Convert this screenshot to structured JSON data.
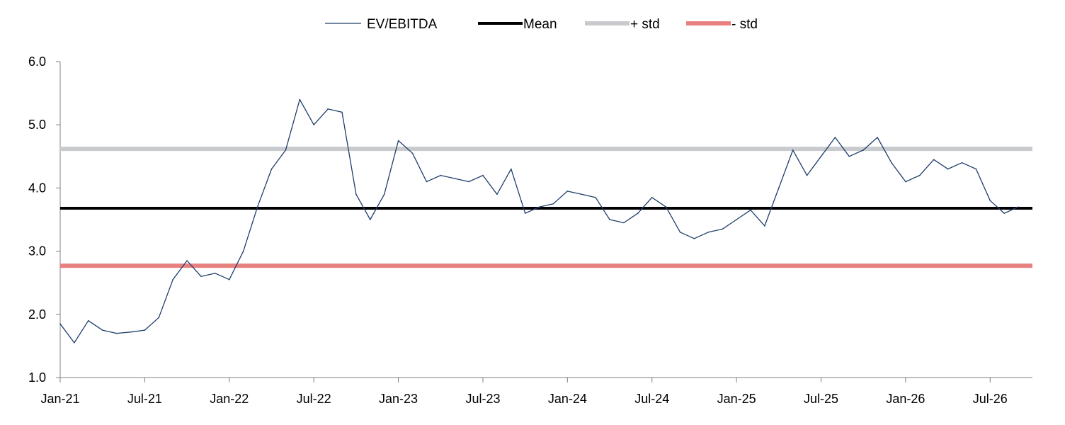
{
  "chart_data": {
    "type": "line",
    "title": "",
    "xlabel": "",
    "ylabel": "",
    "xlim": [
      "2021-01",
      "2026-10"
    ],
    "ylim": [
      1.0,
      6.0
    ],
    "x_ticks": [
      "Jan-21",
      "Jul-21",
      "Jan-22",
      "Jul-22",
      "Jan-23",
      "Jul-23",
      "Jan-24",
      "Jul-24",
      "Jan-25",
      "Jul-25",
      "Jan-26",
      "Jul-26"
    ],
    "y_ticks": [
      "1.0",
      "2.0",
      "3.0",
      "4.0",
      "5.0",
      "6.0"
    ],
    "grid": false,
    "legend_position": "top-center",
    "legend": [
      "EV/EBITDA",
      "Mean",
      "+ std",
      "- std"
    ],
    "colors": {
      "ev_ebitda": "#1f3d6b",
      "mean": "#000000",
      "plus_std": "#c8cace",
      "minus_std": "#e88080"
    },
    "series": [
      {
        "name": "EV/EBITDA",
        "x": [
          "2021-01",
          "2021-02",
          "2021-03",
          "2021-04",
          "2021-05",
          "2021-06",
          "2021-07",
          "2021-08",
          "2021-09",
          "2021-10",
          "2021-11",
          "2021-12",
          "2022-01",
          "2022-02",
          "2022-03",
          "2022-04",
          "2022-05",
          "2022-06",
          "2022-07",
          "2022-08",
          "2022-09",
          "2022-10",
          "2022-11",
          "2022-12",
          "2023-01",
          "2023-02",
          "2023-03",
          "2023-04",
          "2023-05",
          "2023-06",
          "2023-07",
          "2023-08",
          "2023-09",
          "2023-10",
          "2023-11",
          "2023-12",
          "2024-01",
          "2024-02",
          "2024-03",
          "2024-04",
          "2024-05",
          "2024-06",
          "2024-07",
          "2024-08",
          "2024-09",
          "2024-10",
          "2024-11",
          "2024-12",
          "2025-01",
          "2025-02",
          "2025-03",
          "2025-04",
          "2025-05",
          "2025-06",
          "2025-07",
          "2025-08",
          "2025-09",
          "2025-10",
          "2025-11",
          "2025-12",
          "2026-01",
          "2026-02",
          "2026-03",
          "2026-04",
          "2026-05",
          "2026-06",
          "2026-07",
          "2026-08",
          "2026-09"
        ],
        "values": [
          1.85,
          1.55,
          1.9,
          1.75,
          1.7,
          1.72,
          1.75,
          1.95,
          2.55,
          2.85,
          2.6,
          2.65,
          2.55,
          3.0,
          3.7,
          4.3,
          4.6,
          5.4,
          5.0,
          5.25,
          5.2,
          3.9,
          3.5,
          3.9,
          4.75,
          4.55,
          4.1,
          4.2,
          4.15,
          4.1,
          4.2,
          3.9,
          4.3,
          3.6,
          3.7,
          3.75,
          3.95,
          3.9,
          3.85,
          3.5,
          3.45,
          3.6,
          3.85,
          3.7,
          3.3,
          3.2,
          3.3,
          3.35,
          3.5,
          3.65,
          3.4,
          4.0,
          4.6,
          4.2,
          4.5,
          4.8,
          4.5,
          4.6,
          4.8,
          4.4,
          4.1,
          4.2,
          4.45,
          4.3,
          4.4,
          4.3,
          3.8,
          3.6,
          3.7
        ]
      },
      {
        "name": "Mean",
        "value": 3.68
      },
      {
        "name": "+ std",
        "value": 4.62
      },
      {
        "name": "- std",
        "value": 2.77
      }
    ]
  }
}
